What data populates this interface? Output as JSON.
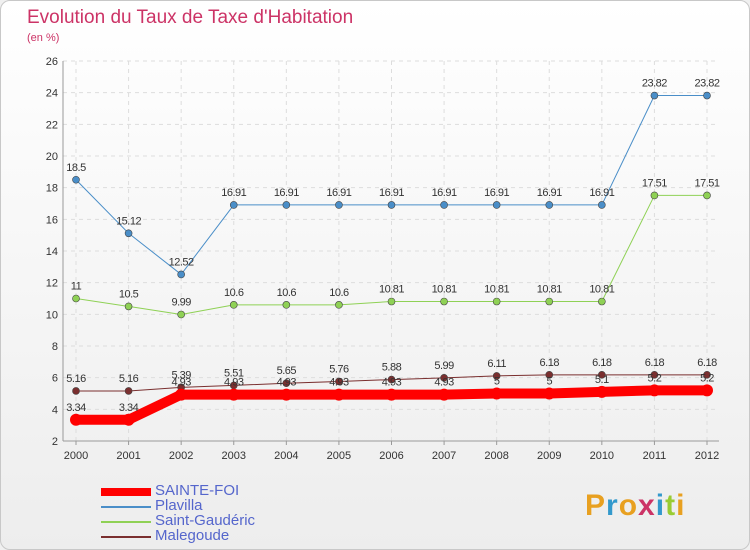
{
  "chart_data": {
    "type": "line",
    "title": "Evolution du Taux de Taxe d'Habitation",
    "subtitle": "(en %)",
    "x": [
      "2000",
      "2001",
      "2002",
      "2003",
      "2004",
      "2005",
      "2006",
      "2007",
      "2008",
      "2009",
      "2010",
      "2011",
      "2012"
    ],
    "ylim": [
      2,
      26
    ],
    "yticks": [
      2,
      4,
      6,
      8,
      10,
      12,
      14,
      16,
      18,
      20,
      22,
      24,
      26
    ],
    "grid": true,
    "legend_position": "bottom-left",
    "series": [
      {
        "name": "SAINTE-FOI",
        "color": "#ff0000",
        "width": 10,
        "values": [
          3.34,
          3.34,
          4.93,
          4.93,
          4.93,
          4.93,
          4.93,
          4.93,
          5,
          5,
          5.1,
          5.2,
          5.2
        ],
        "labels": [
          "3.34",
          "3.34",
          "4.93",
          "4.93",
          "4.93",
          "4.93",
          "4.93",
          "4.93",
          "5",
          "5",
          "5.1",
          "5.2",
          "5.2"
        ]
      },
      {
        "name": "Plavilla",
        "color": "#4a8ec8",
        "width": 1,
        "values": [
          18.5,
          15.12,
          12.52,
          16.91,
          16.91,
          16.91,
          16.91,
          16.91,
          16.91,
          16.91,
          16.91,
          23.82,
          23.82
        ],
        "labels": [
          "18.5",
          "15.12",
          "12.52",
          "16.91",
          "16.91",
          "16.91",
          "16.91",
          "16.91",
          "16.91",
          "16.91",
          "16.91",
          "23.82",
          "23.82"
        ]
      },
      {
        "name": "Saint-Gaudéric",
        "color": "#8fd155",
        "width": 1,
        "values": [
          11,
          10.5,
          9.99,
          10.6,
          10.6,
          10.6,
          10.81,
          10.81,
          10.81,
          10.81,
          10.81,
          17.51,
          17.51
        ],
        "labels": [
          "11",
          "10.5",
          "9.99",
          "10.6",
          "10.6",
          "10.6",
          "10.81",
          "10.81",
          "10.81",
          "10.81",
          "10.81",
          "17.51",
          "17.51"
        ]
      },
      {
        "name": "Malegoude",
        "color": "#7a2f2f",
        "width": 1,
        "values": [
          5.16,
          5.16,
          5.39,
          5.51,
          5.65,
          5.76,
          5.88,
          5.99,
          6.11,
          6.18,
          6.18,
          6.18,
          6.18
        ],
        "labels": [
          "5.16",
          "5.16",
          "5.39",
          "5.51",
          "5.65",
          "5.76",
          "5.88",
          "5.99",
          "6.11",
          "6.18",
          "6.18",
          "6.18",
          "6.18"
        ]
      }
    ]
  },
  "brand": {
    "letters": [
      "P",
      "r",
      "o",
      "x",
      "i",
      "t",
      "i"
    ],
    "colors": [
      "#e8a020",
      "#3399cc",
      "#e8a020",
      "#cc3366",
      "#3399cc",
      "#99cc33",
      "#e8a020"
    ]
  }
}
